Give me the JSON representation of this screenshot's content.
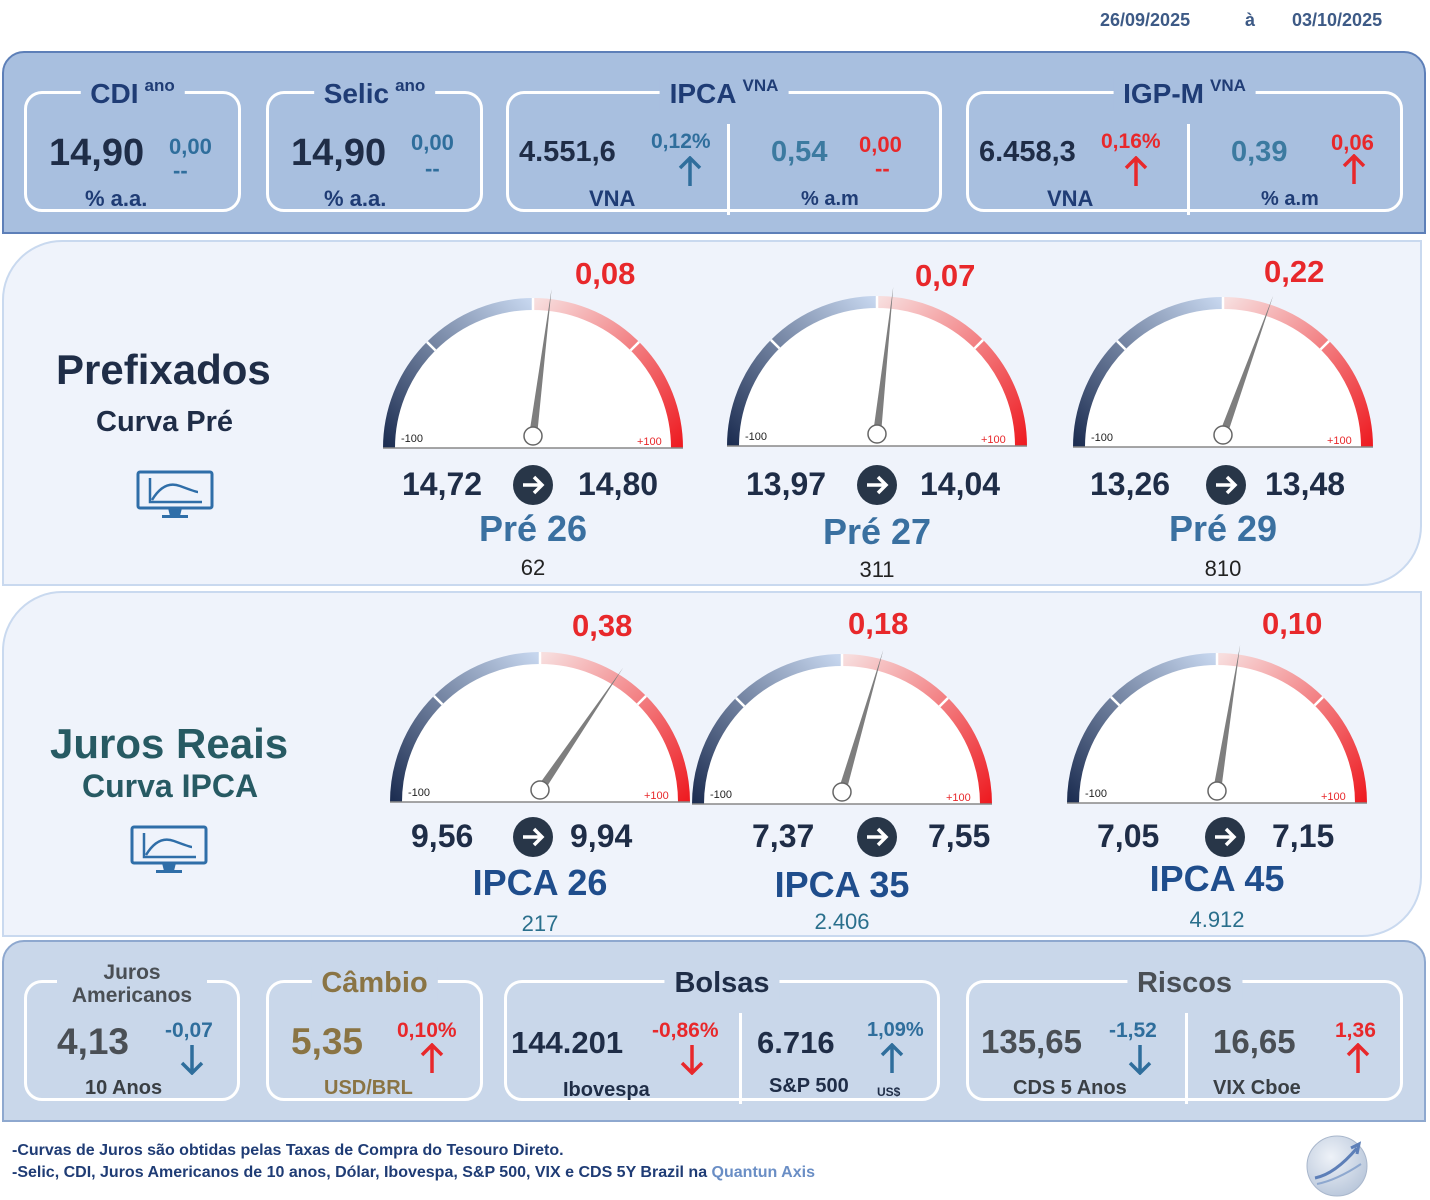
{
  "date_range": {
    "start": "26/09/2025",
    "sep": "à",
    "end": "03/10/2025"
  },
  "top": {
    "cdi": {
      "title": "CDI",
      "sup": "ano",
      "value": "14,90",
      "delta": "0,00",
      "delta_sub": "--",
      "unit": "% a.a."
    },
    "selic": {
      "title": "Selic",
      "sup": "ano",
      "value": "14,90",
      "delta": "0,00",
      "delta_sub": "--",
      "unit": "% a.a."
    },
    "ipca": {
      "title": "IPCA",
      "sup": "VNA",
      "vna_value": "4.551,6",
      "vna_delta": "0,12%",
      "vna_label": "VNA",
      "month_value": "0,54",
      "month_delta": "0,00",
      "month_sub": "--",
      "month_label": "% a.m"
    },
    "igpm": {
      "title": "IGP-M",
      "sup": "VNA",
      "vna_value": "6.458,3",
      "vna_delta": "0,16%",
      "vna_label": "VNA",
      "month_value": "0,39",
      "month_delta": "0,06",
      "month_label": "% a.m"
    }
  },
  "prefixados": {
    "title": "Prefixados",
    "subtitle": "Curva Pré",
    "icon": "chart-monitor-icon",
    "gauges": [
      {
        "change": "0,08",
        "from": "14,72",
        "to": "14,80",
        "name": "Pré 26",
        "count": "62",
        "needle": 8,
        "min_label": "-100",
        "max_label": "+100"
      },
      {
        "change": "0,07",
        "from": "13,97",
        "to": "14,04",
        "name": "Pré 27",
        "count": "311",
        "needle": 7,
        "min_label": "-100",
        "max_label": "+100"
      },
      {
        "change": "0,22",
        "from": "13,26",
        "to": "13,48",
        "name": "Pré 29",
        "count": "810",
        "needle": 22,
        "min_label": "-100",
        "max_label": "+100"
      }
    ]
  },
  "juros_reais": {
    "title": "Juros Reais",
    "subtitle": "Curva IPCA",
    "icon": "chart-monitor-icon",
    "gauges": [
      {
        "change": "0,38",
        "from": "9,56",
        "to": "9,94",
        "name": "IPCA 26",
        "count": "217",
        "needle": 38,
        "min_label": "-100",
        "max_label": "+100"
      },
      {
        "change": "0,18",
        "from": "7,37",
        "to": "7,55",
        "name": "IPCA 35",
        "count": "2.406",
        "needle": 18,
        "min_label": "-100",
        "max_label": "+100"
      },
      {
        "change": "0,10",
        "from": "7,05",
        "to": "7,15",
        "name": "IPCA 45",
        "count": "4.912",
        "needle": 10,
        "min_label": "-100",
        "max_label": "+100"
      }
    ]
  },
  "bottom": {
    "juros": {
      "title": "Juros Americanos",
      "value": "4,13",
      "delta": "-0,07",
      "unit": "10 Anos"
    },
    "cambio": {
      "title": "Câmbio",
      "value": "5,35",
      "delta": "0,10%",
      "unit": "USD/BRL"
    },
    "bolsas": {
      "title": "Bolsas",
      "ibov_value": "144.201",
      "ibov_delta": "-0,86%",
      "ibov_label": "Ibovespa",
      "sp_value": "6.716",
      "sp_delta": "1,09%",
      "sp_label": "S&P 500",
      "sp_sub": "US$"
    },
    "riscos": {
      "title": "Riscos",
      "cds_value": "135,65",
      "cds_delta": "-1,52",
      "cds_label": "CDS 5 Anos",
      "vix_value": "16,65",
      "vix_delta": "1,36",
      "vix_label": "VIX Cboe"
    }
  },
  "footer": {
    "line1": "-Curvas de Juros são obtidas pelas Taxas de Compra do Tesouro Direto.",
    "line2": "-Selic, CDI, Juros Americanos de 10 anos, Dólar, Ibovespa,  S&P 500, VIX e CDS 5Y Brazil na",
    "line2_highlight": "Quantun Axis"
  },
  "colors": {
    "red": "#e8282b",
    "blue_arrow": "#2f6e9c",
    "navy": "#1f2d47",
    "teal": "#2a5e6e",
    "olive": "#8a7444"
  }
}
